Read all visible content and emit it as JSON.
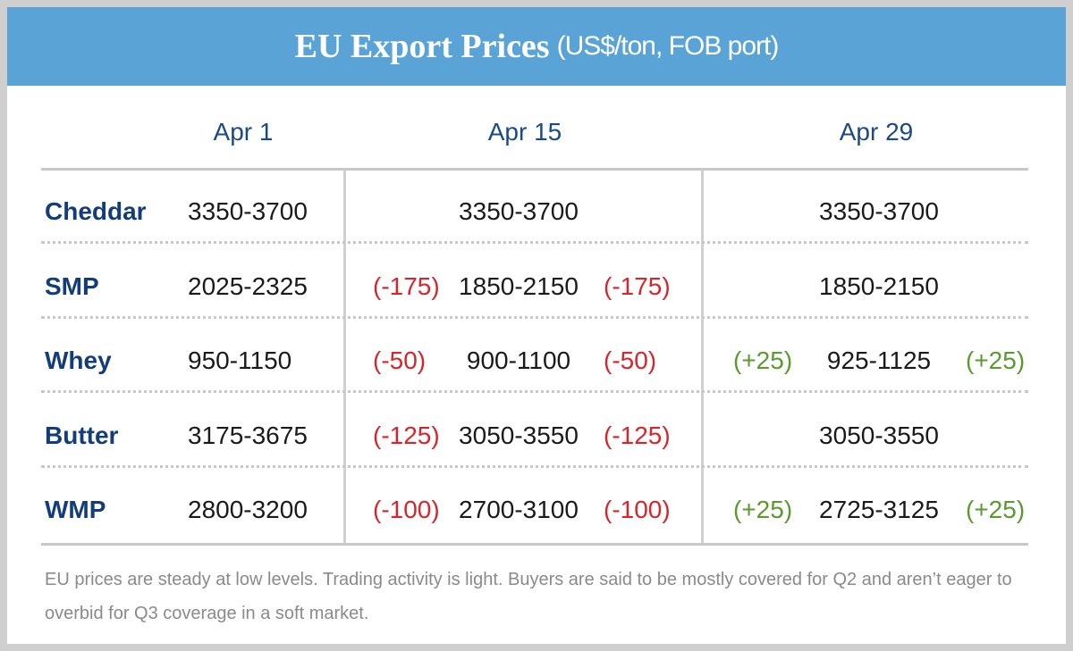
{
  "header": {
    "title": "EU Export Prices",
    "subtitle": "(US$/ton, FOB port)"
  },
  "table": {
    "columns": [
      "Apr 1",
      "Apr 15",
      "Apr 29"
    ],
    "rows": [
      {
        "product": "Cheddar",
        "apr1": {
          "range": "3350-3700"
        },
        "apr15": {
          "range": "3350-3700"
        },
        "apr29": {
          "range": "3350-3700"
        }
      },
      {
        "product": "SMP",
        "apr1": {
          "range": "2025-2325"
        },
        "apr15": {
          "change_before": "(-175)",
          "range": "1850-2150",
          "change_after": "(-175)"
        },
        "apr29": {
          "range": "1850-2150"
        }
      },
      {
        "product": "Whey",
        "apr1": {
          "range": "950-1150"
        },
        "apr15": {
          "change_before": "(-50)",
          "range": "900-1100",
          "change_after": "(-50)"
        },
        "apr29": {
          "change_before": "(+25)",
          "range": "925-1125",
          "change_after": "(+25)"
        }
      },
      {
        "product": "Butter",
        "apr1": {
          "range": "3175-3675"
        },
        "apr15": {
          "change_before": "(-125)",
          "range": "3050-3550",
          "change_after": "(-125)"
        },
        "apr29": {
          "range": "3050-3550"
        }
      },
      {
        "product": "WMP",
        "apr1": {
          "range": "2800-3200"
        },
        "apr15": {
          "change_before": "(-100)",
          "range": "2700-3100",
          "change_after": "(-100)"
        },
        "apr29": {
          "change_before": "(+25)",
          "range": "2725-3125",
          "change_after": "(+25)"
        }
      }
    ]
  },
  "footnote": "EU prices are steady at low levels. Trading activity is light. Buyers are said to be mostly covered for Q2 and aren’t eager to overbid for Q3 coverage in a soft market."
}
